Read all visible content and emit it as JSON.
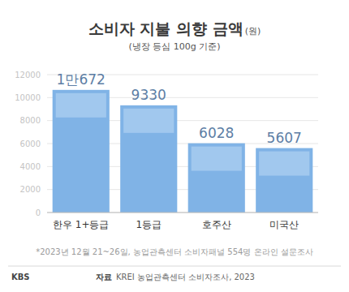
{
  "chart_data": {
    "type": "bar",
    "title": "소비자 지불 의향 금액",
    "y_label": "(원)",
    "subtitle": "(냉장 등심 100g 기준)",
    "categories": [
      "한우 1+등급",
      "1등급",
      "호주산",
      "미국산"
    ],
    "values": [
      10672,
      9330,
      6028,
      5607
    ],
    "value_labels": [
      "1만672",
      "9330",
      "6028",
      "5607"
    ],
    "data_labels": true,
    "color": "#80b3e6",
    "ylim": [
      0,
      12000
    ],
    "yticks": [
      0,
      2000,
      4000,
      6000,
      8000,
      10000,
      12000
    ],
    "grid": true,
    "footnote": "*2023년 12월 21~26일, 농업관측센터 소비자패널 554명 온라인 설문조사",
    "source_label": "자료",
    "source": "KREI 농업관측센터 소비자조사, 2023",
    "logo": "KBS"
  }
}
